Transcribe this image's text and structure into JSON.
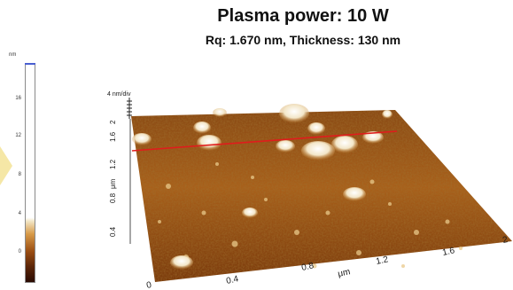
{
  "title": "Plasma power: 10 W",
  "subtitle": "Rq: 1.670 nm, Thickness: 130 nm",
  "colorbar": {
    "unit": "nm",
    "ticks": [
      "16",
      "12",
      "8",
      "4",
      "0"
    ]
  },
  "surface": {
    "z_scale_label": "4 nm/div",
    "y_axis_unit": "μm",
    "y_ticks": [
      "0.4",
      "0.8",
      "1.2",
      "1.6",
      "2"
    ],
    "x_axis_unit": "μm",
    "x_ticks": [
      "0",
      "0.4",
      "0.8",
      "1.2",
      "1.6",
      "2"
    ],
    "line_color": "#e01c1c"
  }
}
